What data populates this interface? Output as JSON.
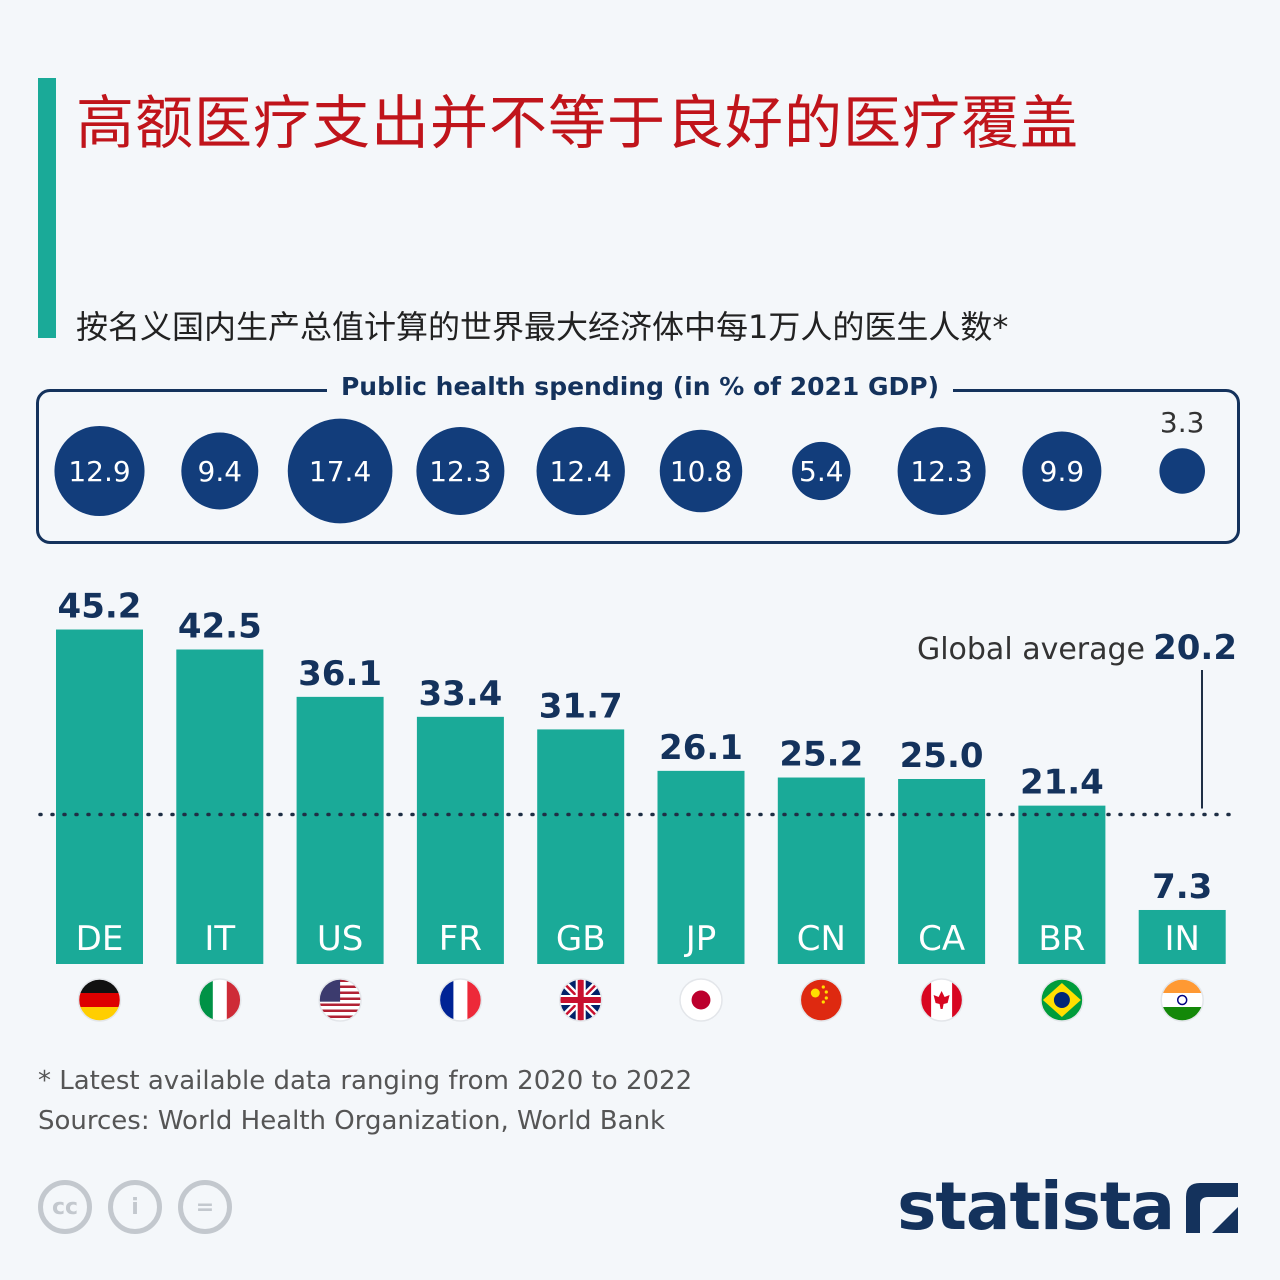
{
  "header": {
    "title": "高额医疗支出并不等于良好的医疗覆盖",
    "subtitle": "按名义国内生产总值计算的世界最大经济体中每1万人的医生人数*"
  },
  "spending_panel": {
    "label": "Public health spending (in % of 2021 GDP)"
  },
  "average": {
    "label": "Global average",
    "value": 20.2
  },
  "chart_data": {
    "type": "bar",
    "categories": [
      "DE",
      "IT",
      "US",
      "FR",
      "GB",
      "JP",
      "CN",
      "CA",
      "BR",
      "IN"
    ],
    "values": [
      45.2,
      42.5,
      36.1,
      33.4,
      31.7,
      26.1,
      25.2,
      25.0,
      21.4,
      7.3
    ],
    "value_labels": [
      "45.2",
      "42.5",
      "36.1",
      "33.4",
      "31.7",
      "26.1",
      "25.2",
      "25.0",
      "21.4",
      "7.3"
    ],
    "health_spending_pct_gdp": [
      12.9,
      9.4,
      17.4,
      12.3,
      12.4,
      10.8,
      5.4,
      12.3,
      9.9,
      3.3
    ],
    "health_spending_labels": [
      "12.9",
      "9.4",
      "17.4",
      "12.3",
      "12.4",
      "10.8",
      "5.4",
      "12.3",
      "9.9",
      "3.3"
    ],
    "reference_line": 20.2,
    "colors": {
      "bar": "#1aaa98",
      "bubble": "#123d7b",
      "text": "#14325c",
      "title": "#c0141b"
    }
  },
  "flags": [
    "germany-flag-icon",
    "italy-flag-icon",
    "usa-flag-icon",
    "france-flag-icon",
    "uk-flag-icon",
    "japan-flag-icon",
    "china-flag-icon",
    "canada-flag-icon",
    "brazil-flag-icon",
    "india-flag-icon"
  ],
  "footer": {
    "footnote": "* Latest available data ranging from 2020 to 2022",
    "sources": "Sources: World Health Organization, World Bank",
    "license_icons": [
      "cc",
      "i",
      "="
    ],
    "logo": "statista"
  }
}
